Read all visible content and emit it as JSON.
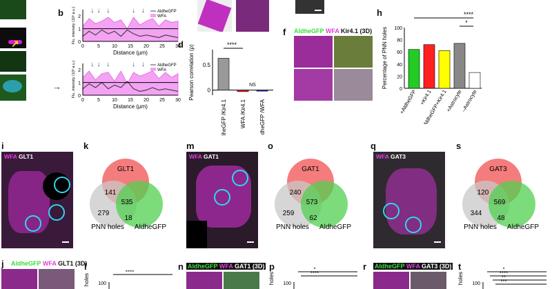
{
  "panel_labels": {
    "b": "b",
    "d": "d",
    "f": "f",
    "h": "h",
    "i": "i",
    "k": "k",
    "m": "m",
    "o": "o",
    "q": "q",
    "s": "s",
    "j": "j",
    "l": "l",
    "n": "n",
    "p": "p",
    "r": "r",
    "t": "t"
  },
  "b": {
    "ylabel": "Flu. intensity (10³ a.u.)",
    "xlabel": "Distance (µm)",
    "legend": [
      "AldheGFP",
      "WFA"
    ],
    "xticks": [
      "0",
      "5",
      "10",
      "15",
      "20",
      "25",
      "30"
    ],
    "yticks": [
      "0",
      "1",
      "2"
    ]
  },
  "d": {
    "ylabel": "Pearson correlation (ρ)",
    "yticks": [
      "0",
      "0.5"
    ],
    "categories": [
      "AldheGFP /Kir4.1",
      "WFA /Kir4.1",
      "AldheGFP /WFA"
    ],
    "sig": [
      "****",
      "NS"
    ]
  },
  "f": {
    "labels": [
      "AldheGFP",
      "WFA",
      "Kir4.1 (3D)"
    ]
  },
  "h": {
    "ylabel": "Percentage of PNN holes",
    "yticks": [
      "0",
      "20",
      "40",
      "60",
      "80",
      "100"
    ],
    "categories": [
      "+AldheGFP",
      "+Kir4.1",
      "+AldheGFP+Kir4.1",
      "+Astrocyte",
      "–Astrocyte"
    ],
    "sig": [
      "****",
      "*"
    ]
  },
  "i": {
    "labels": [
      "WFA",
      "GLT1"
    ]
  },
  "m": {
    "labels": [
      "WFA",
      "GAT1"
    ]
  },
  "q": {
    "labels": [
      "WFA",
      "GAT3"
    ]
  },
  "venn_k": {
    "sets": [
      "GLT1",
      "PNN holes",
      "AldheGFP"
    ],
    "counts": [
      "141",
      "535",
      "279",
      "18"
    ]
  },
  "venn_o": {
    "sets": [
      "GAT1",
      "PNN holes",
      "AldheGFP"
    ],
    "counts": [
      "240",
      "573",
      "259",
      "62"
    ]
  },
  "venn_s": {
    "sets": [
      "GAT3",
      "PNN holes",
      "AldheGFP"
    ],
    "counts": [
      "120",
      "569",
      "344",
      "48"
    ]
  },
  "j": {
    "labels": [
      "AldheGFP",
      "WFA",
      "GLT1 (3D)"
    ]
  },
  "n": {
    "labels": [
      "AldheGFP",
      "WFA",
      "GAT1 (3D)"
    ]
  },
  "r": {
    "labels": [
      "AldheGFP",
      "WFA",
      "GAT3 (3D)"
    ]
  },
  "l": {
    "ylabel": "holes",
    "ytick": "100",
    "sig": "****"
  },
  "p": {
    "ylabel": "holes",
    "ytick": "100",
    "sig": [
      "*",
      "****"
    ]
  },
  "t": {
    "ylabel": "holes",
    "ytick": "100",
    "sig": [
      "*",
      "****",
      "**",
      "***"
    ]
  },
  "chart_data": [
    {
      "type": "line",
      "title": "b (top)",
      "xlabel": "Distance (µm)",
      "ylabel": "Flu. intensity (10³ a.u.)",
      "xlim": [
        0,
        30
      ],
      "ylim": [
        0,
        2.5
      ],
      "series": [
        {
          "name": "AldheGFP",
          "x": [
            0,
            2,
            4,
            6,
            8,
            10,
            12,
            14,
            16,
            18,
            20,
            22,
            24,
            26,
            28,
            30
          ],
          "y": [
            0.4,
            0.8,
            0.5,
            0.9,
            0.6,
            0.8,
            0.4,
            0.9,
            0.6,
            0.4,
            0.5,
            0.4,
            0.3,
            0.5,
            0.4,
            0.3
          ]
        },
        {
          "name": "WFA",
          "x": [
            0,
            2,
            4,
            6,
            8,
            10,
            12,
            14,
            16,
            18,
            20,
            22,
            24,
            26,
            28,
            30
          ],
          "y": [
            1.2,
            1.8,
            1.4,
            1.6,
            1.9,
            1.5,
            1.7,
            1.0,
            1.9,
            1.3,
            1.6,
            1.8,
            1.2,
            1.7,
            1.5,
            1.6
          ]
        }
      ]
    },
    {
      "type": "line",
      "title": "b (bottom)",
      "xlabel": "Distance (µm)",
      "ylabel": "Flu. intensity (10³ a.u.)",
      "xlim": [
        0,
        30
      ],
      "ylim": [
        0,
        2.5
      ],
      "series": [
        {
          "name": "AldheGFP",
          "x": [
            0,
            2,
            4,
            6,
            8,
            10,
            12,
            14,
            16,
            18,
            20,
            22,
            24,
            26,
            28,
            30
          ],
          "y": [
            0.5,
            0.9,
            0.6,
            1.0,
            0.5,
            0.8,
            0.6,
            1.1,
            0.5,
            0.3,
            0.4,
            0.6,
            0.4,
            0.5,
            0.4,
            0.3
          ]
        },
        {
          "name": "WFA",
          "x": [
            0,
            2,
            4,
            6,
            8,
            10,
            12,
            14,
            16,
            18,
            20,
            22,
            24,
            26,
            28,
            30
          ],
          "y": [
            1.4,
            1.9,
            1.2,
            1.7,
            1.8,
            1.1,
            1.9,
            0.9,
            1.8,
            1.5,
            1.7,
            1.9,
            1.3,
            1.8,
            1.4,
            1.7
          ]
        }
      ]
    },
    {
      "type": "bar",
      "title": "d",
      "categories": [
        "AldheGFP /Kir4.1",
        "WFA /Kir4.1",
        "AldheGFP /WFA"
      ],
      "values": [
        0.63,
        -0.03,
        -0.02
      ],
      "ylabel": "Pearson correlation (ρ)",
      "ylim": [
        -0.1,
        0.8
      ],
      "colors": [
        "#999999",
        "#ff2020",
        "#2030ff"
      ]
    },
    {
      "type": "bar",
      "title": "h",
      "categories": [
        "+AldheGFP",
        "+Kir4.1",
        "+AldheGFP+Kir4.1",
        "+Astrocyte",
        "–Astrocyte"
      ],
      "values": [
        64,
        72,
        62,
        74,
        26
      ],
      "ylabel": "Percentage of PNN holes",
      "ylim": [
        0,
        100
      ],
      "colors": [
        "#22cc22",
        "#ff2020",
        "#ffff00",
        "#888888",
        "#ffffff"
      ]
    }
  ]
}
